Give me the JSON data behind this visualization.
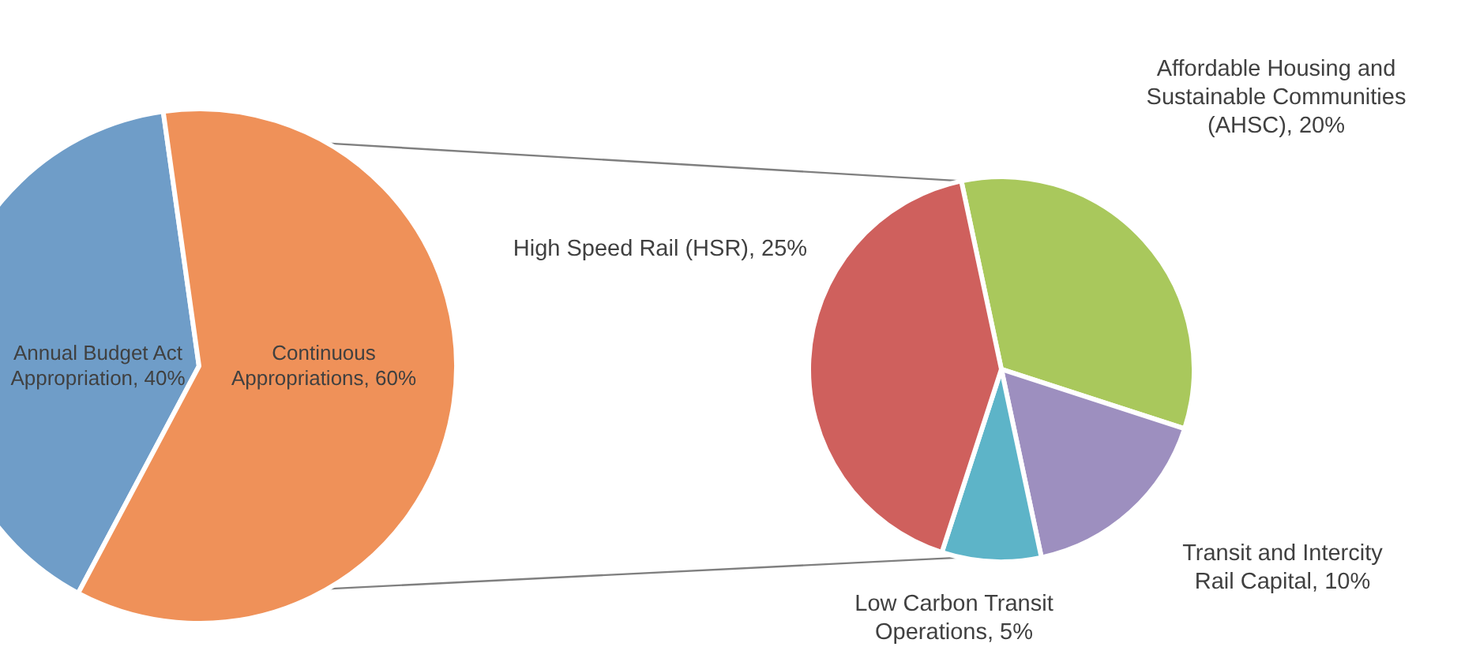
{
  "chart_data": [
    {
      "type": "pie",
      "categories": [
        "Annual Budget Act Appropriation",
        "Continuous Appropriations"
      ],
      "values": [
        40,
        60
      ],
      "value_labels": [
        "40%",
        "60%"
      ],
      "colors": [
        "#6f9dc8",
        "#ef9159"
      ]
    },
    {
      "type": "pie",
      "categories": [
        "Affordable Housing and Sustainable Communities (AHSC)",
        "Transit and Intercity Rail Capital",
        "Low Carbon Transit Operations",
        "High Speed Rail (HSR)"
      ],
      "values": [
        20,
        10,
        5,
        25
      ],
      "value_labels": [
        "20%",
        "10%",
        "5%",
        "25%"
      ],
      "colors": [
        "#a9c85c",
        "#9d8fbf",
        "#5db4c8",
        "#cf605d"
      ]
    }
  ]
}
